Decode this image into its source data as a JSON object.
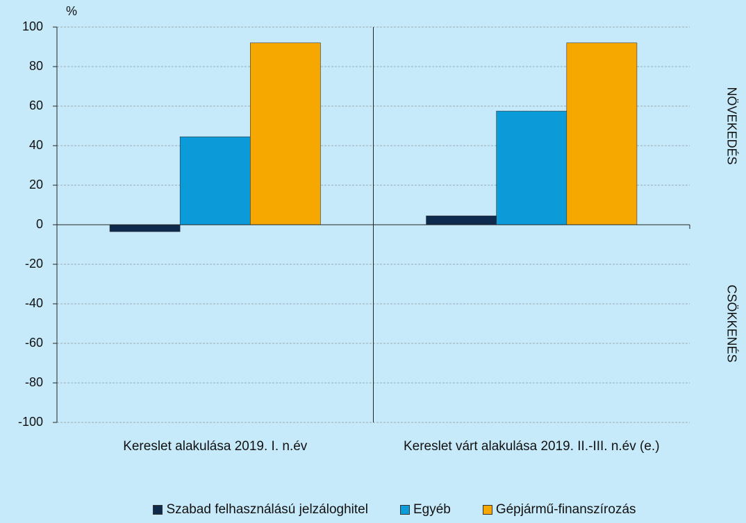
{
  "chart_data": {
    "type": "bar",
    "y_unit_label": "%",
    "categories": [
      "Kereslet alakulása 2019. I. n.év",
      "Kereslet várt alakulása 2019. II.-III. n.év (e.)"
    ],
    "series": [
      {
        "name": "Szabad felhasználású jelzáloghitel",
        "color": "#0e2a4c",
        "values": [
          -3.5,
          4.5
        ]
      },
      {
        "name": "Egyéb",
        "color": "#0b9bd9",
        "values": [
          44.5,
          57.5
        ]
      },
      {
        "name": "Gépjármű-finanszírozás",
        "color": "#f6a800",
        "values": [
          92,
          92
        ]
      }
    ],
    "ylim": [
      -100,
      100
    ],
    "yticks": [
      -100,
      -80,
      -60,
      -40,
      -20,
      0,
      20,
      40,
      60,
      80,
      100
    ],
    "grid": true,
    "annotations": [
      "NÖVEKEDÉS",
      "CSÖKKENÉS"
    ],
    "legend": "bottom"
  }
}
